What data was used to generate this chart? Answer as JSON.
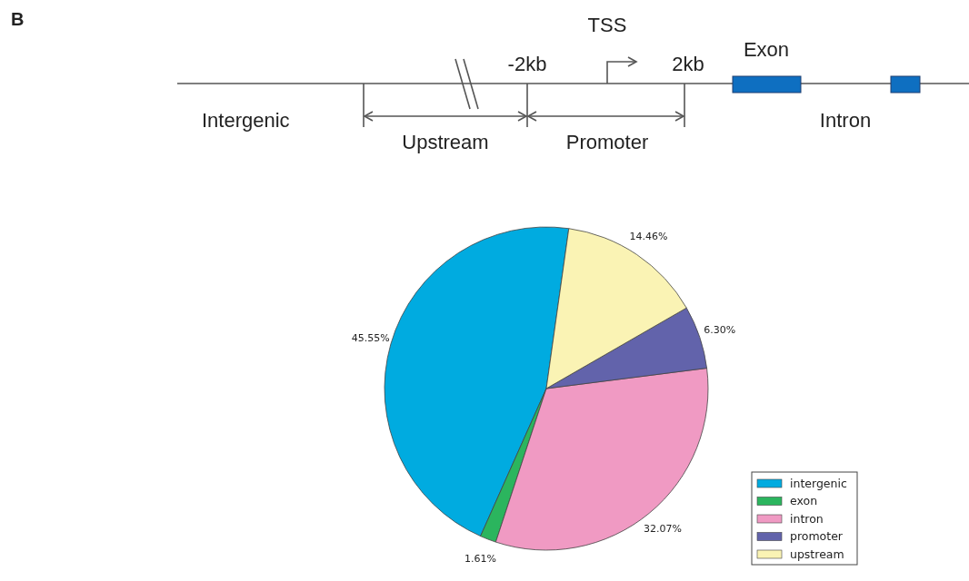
{
  "chart_data": {
    "type": "pie",
    "categories": [
      "intergenic",
      "exon",
      "intron",
      "promoter",
      "upstream"
    ],
    "values": [
      45.55,
      1.61,
      32.07,
      6.3,
      14.46
    ],
    "colors": [
      "#00abe0",
      "#2bb55e",
      "#f09ac3",
      "#6263ab",
      "#faf3b4"
    ],
    "value_labels": [
      "45.55%",
      "1.61%",
      "32.07%",
      "6.30%",
      "14.46%"
    ],
    "legend": "bottom right",
    "annotations": [
      "B",
      "TSS",
      "-2kb",
      "2kb",
      "Exon",
      "Intergenic",
      "Upstream",
      "Promoter",
      "Intron"
    ]
  }
}
